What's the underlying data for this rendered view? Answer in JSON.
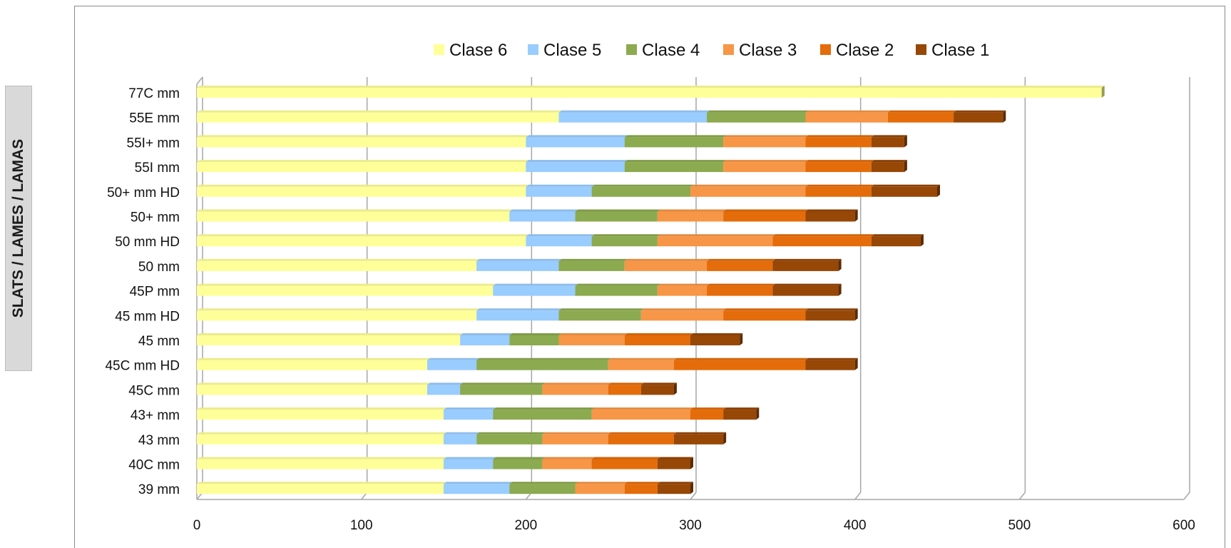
{
  "side_label": "SLATS / LAMES / LAMAS",
  "chart_data": {
    "type": "bar",
    "orientation": "horizontal",
    "stacked": true,
    "title": "",
    "xlabel": "",
    "ylabel": "",
    "xlim": [
      0,
      600
    ],
    "x_ticks": [
      0,
      100,
      200,
      300,
      400,
      500,
      600
    ],
    "grid": true,
    "legend_position": "top",
    "categories": [
      "77C mm",
      "55E mm",
      "55I+ mm",
      "55I mm",
      "50+ mm HD",
      "50+ mm",
      "50 mm HD",
      "50 mm",
      "45P mm",
      "45 mm HD",
      "45 mm ",
      "45C mm HD",
      "45C mm",
      "43+ mm",
      "43 mm",
      "40C mm",
      "39 mm"
    ],
    "series": [
      {
        "name": "Clase 6",
        "color": "#ffff99",
        "values": [
          550,
          220,
          200,
          200,
          200,
          190,
          200,
          170,
          180,
          170,
          160,
          140,
          140,
          150,
          150,
          150,
          150
        ]
      },
      {
        "name": "Clase 5",
        "color": "#99ccff",
        "values": [
          0,
          90,
          60,
          60,
          40,
          40,
          40,
          50,
          50,
          50,
          30,
          30,
          20,
          30,
          20,
          30,
          40
        ]
      },
      {
        "name": "Clase 4",
        "color": "#8caa4f",
        "values": [
          0,
          60,
          60,
          60,
          60,
          50,
          40,
          40,
          50,
          50,
          30,
          80,
          50,
          60,
          40,
          30,
          40
        ]
      },
      {
        "name": "Clase 3",
        "color": "#f79646",
        "values": [
          0,
          50,
          50,
          50,
          70,
          40,
          70,
          50,
          30,
          50,
          40,
          40,
          40,
          60,
          40,
          30,
          30
        ]
      },
      {
        "name": "Clase 2",
        "color": "#e46c0a",
        "values": [
          0,
          40,
          40,
          40,
          40,
          50,
          60,
          40,
          40,
          50,
          40,
          80,
          20,
          20,
          40,
          40,
          20
        ]
      },
      {
        "name": "Clase 1",
        "color": "#974706",
        "values": [
          0,
          30,
          20,
          20,
          40,
          30,
          30,
          40,
          40,
          30,
          30,
          30,
          20,
          20,
          30,
          20,
          20
        ]
      }
    ]
  }
}
